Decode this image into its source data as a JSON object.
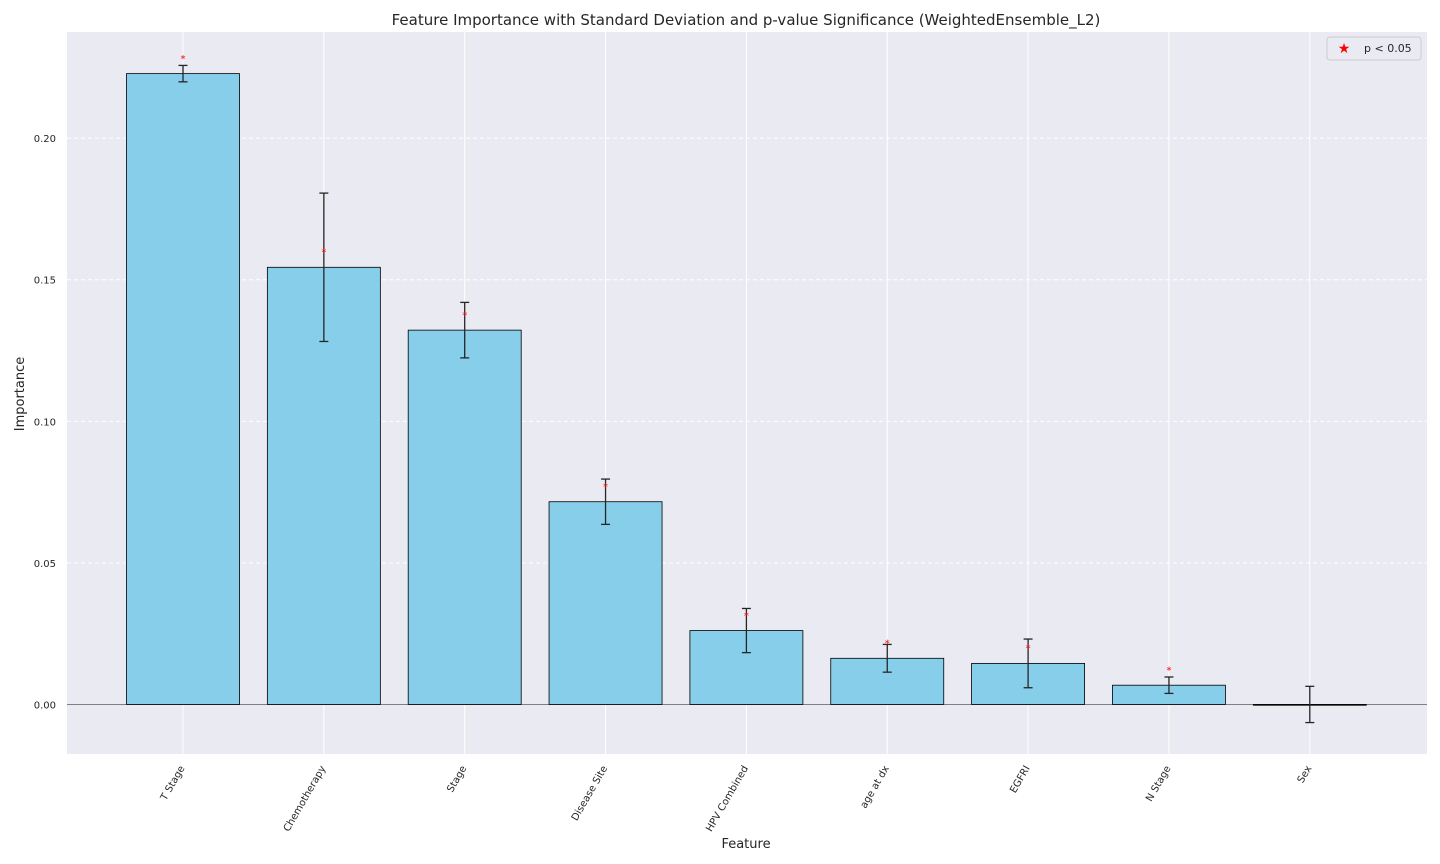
{
  "chart_data": {
    "type": "bar",
    "title": "Feature Importance with Standard Deviation and p-value Significance (WeightedEnsemble_L2)",
    "xlabel": "Feature",
    "ylabel": "Importance",
    "ylim": [
      -0.0175,
      0.2375
    ],
    "yticks": [
      0.0,
      0.05,
      0.1,
      0.15,
      0.2
    ],
    "ytick_labels": [
      "0.00",
      "0.05",
      "0.10",
      "0.15",
      "0.20"
    ],
    "categories": [
      "T Stage",
      "Chemotherapy",
      "Stage",
      "Disease Site",
      "HPV Combined",
      "age at dx",
      "EGFRI",
      "N Stage",
      "Sex"
    ],
    "values": [
      0.2228,
      0.1544,
      0.1322,
      0.0716,
      0.0261,
      0.0163,
      0.0145,
      0.0068,
      0.0
    ],
    "std": [
      0.0029,
      0.0262,
      0.0098,
      0.008,
      0.0078,
      0.0049,
      0.0086,
      0.0029,
      0.0064
    ],
    "significant": [
      true,
      true,
      true,
      true,
      true,
      true,
      true,
      true,
      false
    ],
    "legend": {
      "label": "p < 0.05",
      "position": "top-right"
    },
    "grid": true,
    "colors": {
      "bar": "#87CEEB",
      "bar_edge": "#000000",
      "background": "#EAEAF2",
      "grid": "#ffffff",
      "star": "#ff0000",
      "error": "#262626",
      "zero_line": "#808080"
    }
  }
}
